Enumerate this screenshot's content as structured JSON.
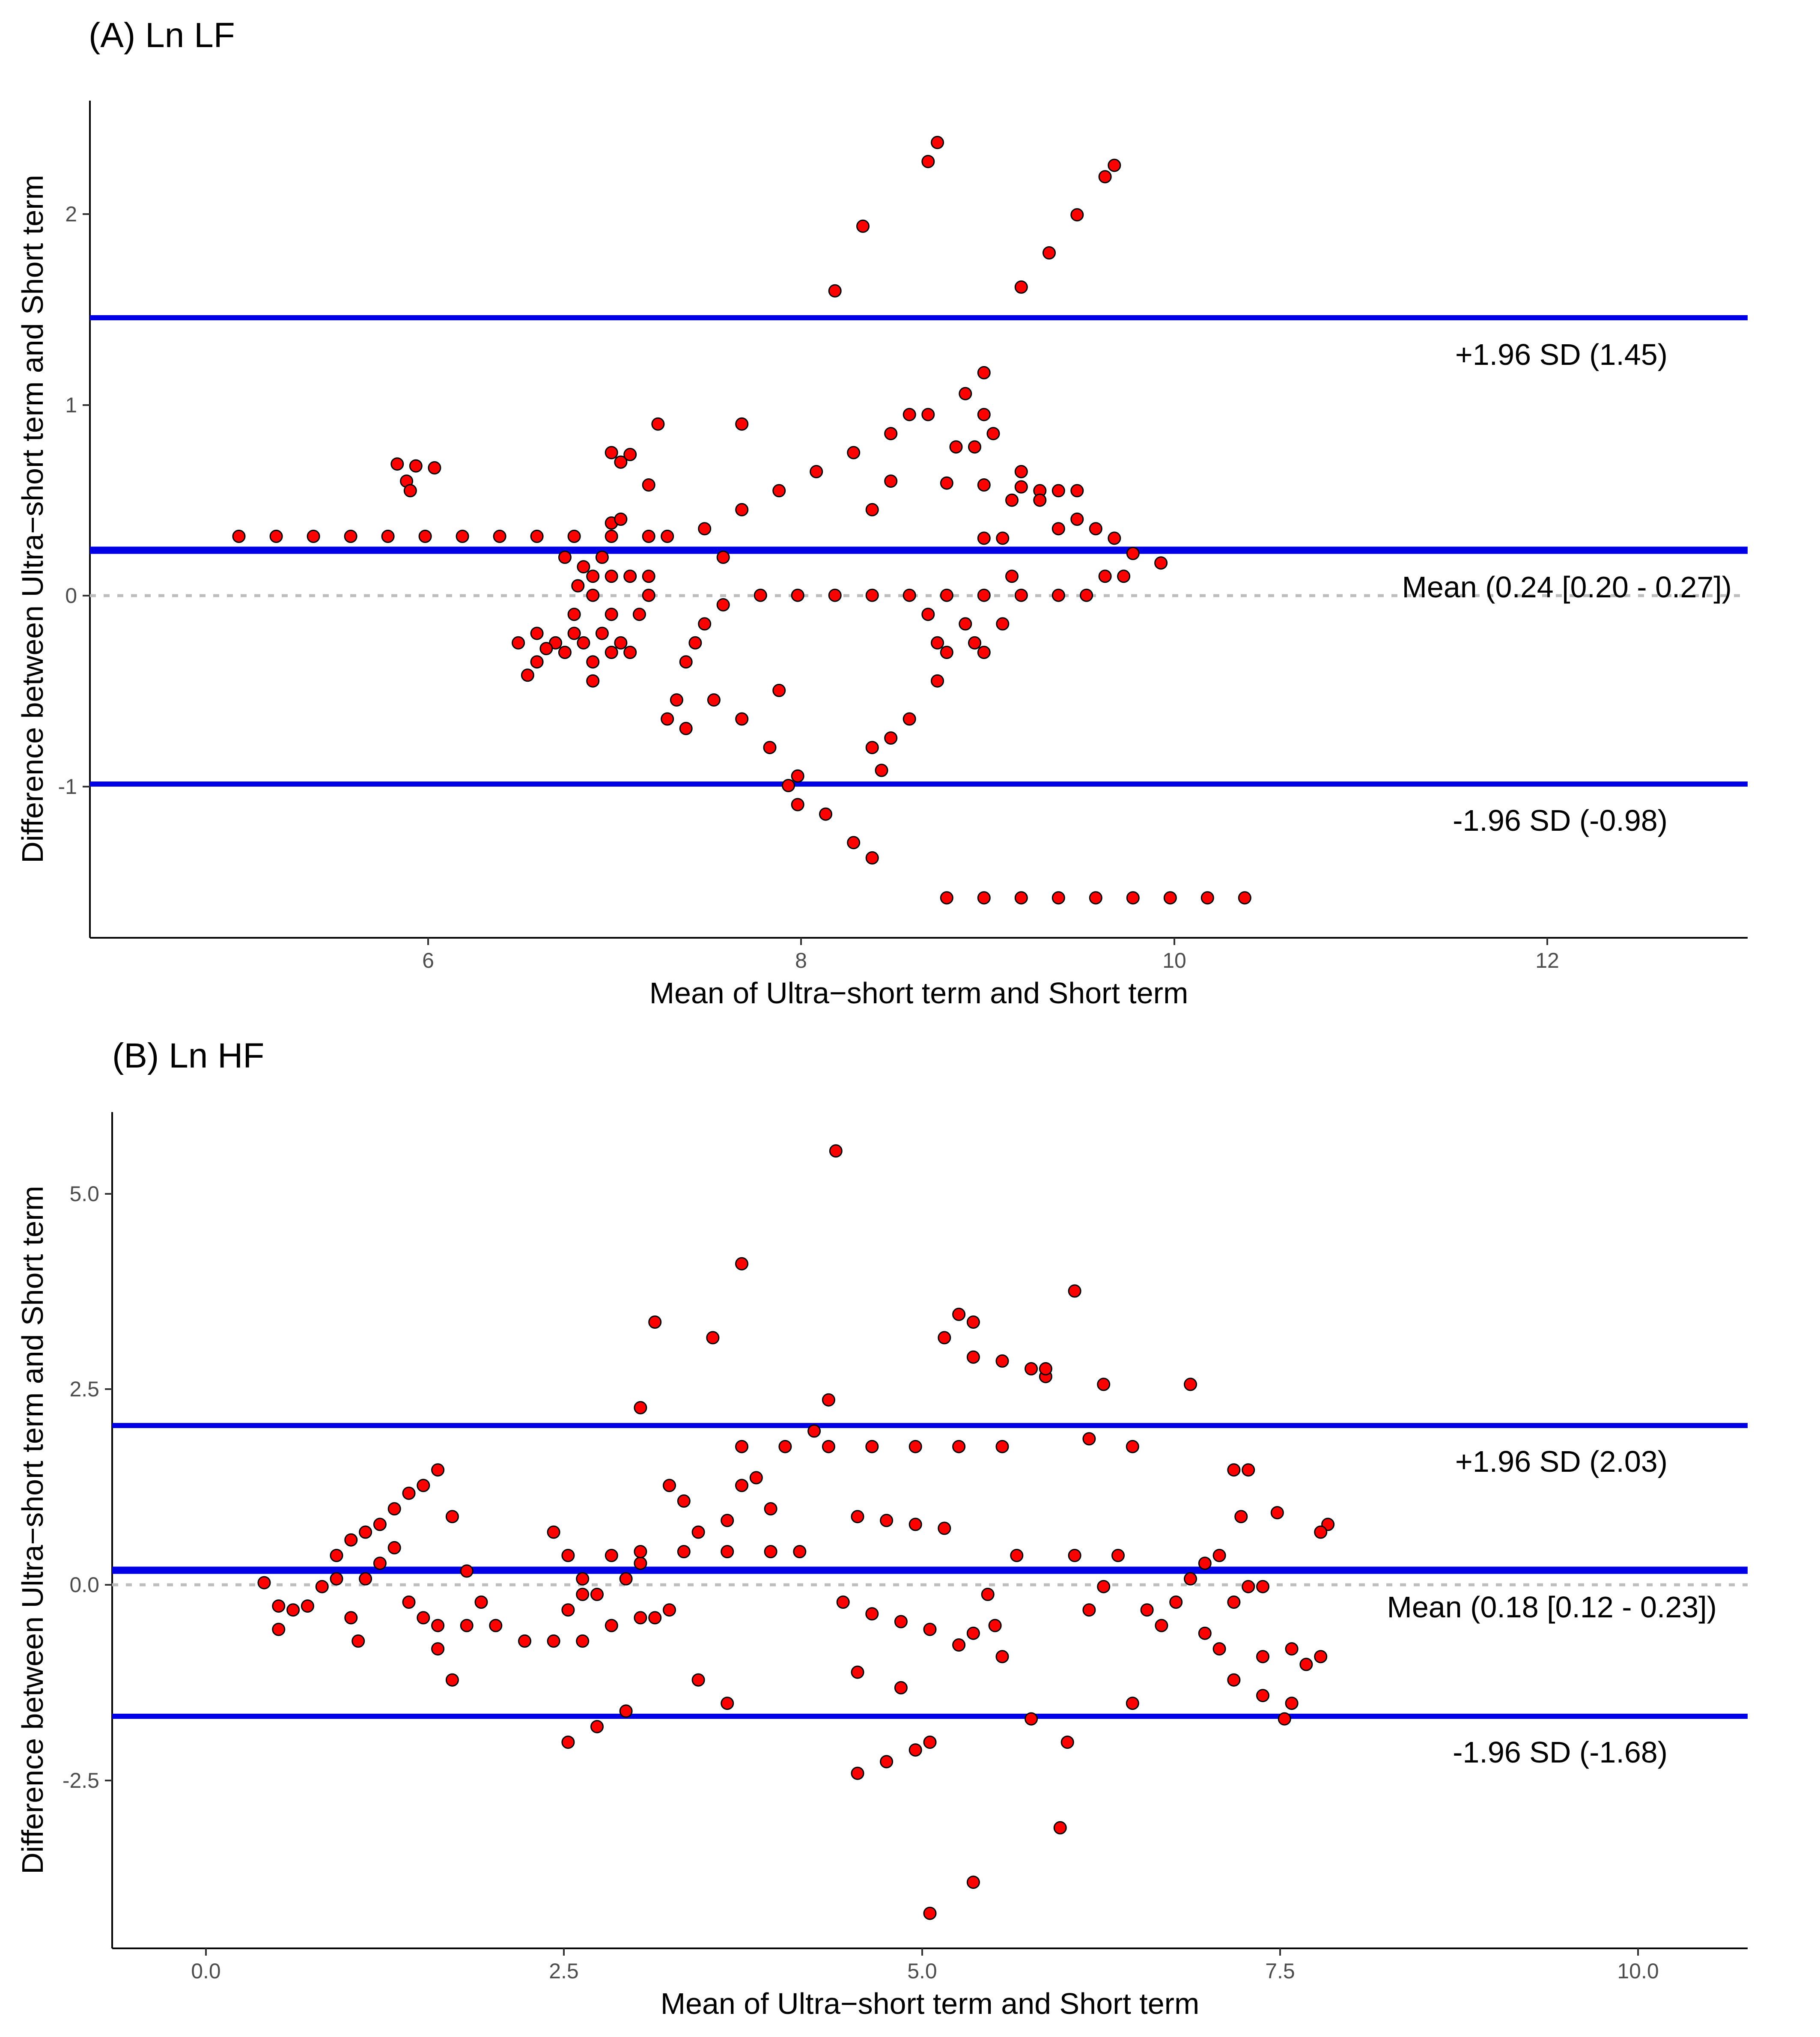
{
  "chart_data": [
    {
      "type": "scatter",
      "title": "(A) Ln LF",
      "xlabel": "Mean of Ultra−short term and Short term",
      "ylabel": "Difference between Ultra−short term and Short term",
      "xlim": [
        4.3,
        13.2
      ],
      "ylim": [
        -1.8,
        2.6
      ],
      "xticks": [
        6,
        8,
        10,
        12
      ],
      "xtick_labels": [
        "6",
        "8",
        "10",
        "12"
      ],
      "yticks": [
        -1,
        0,
        1,
        2
      ],
      "ytick_labels": [
        "-1",
        "0",
        "1",
        "2"
      ],
      "reference_lines": [
        {
          "name": "upper-loa",
          "value": 1.45,
          "label": "+1.96 SD (1.45)"
        },
        {
          "name": "mean",
          "value": 0.24,
          "label": "Mean (0.24 [0.20 - 0.27])"
        },
        {
          "name": "lower-loa",
          "value": -0.98,
          "label": "-1.96 SD (-0.98)"
        }
      ],
      "zero_line": 0,
      "points": [
        [
          5.1,
          0.31
        ],
        [
          5.3,
          0.31
        ],
        [
          5.5,
          0.31
        ],
        [
          5.7,
          0.31
        ],
        [
          5.9,
          0.31
        ],
        [
          6.1,
          0.31
        ],
        [
          6.3,
          0.31
        ],
        [
          6.5,
          0.31
        ],
        [
          6.7,
          0.31
        ],
        [
          6.9,
          0.31
        ],
        [
          7.1,
          0.31
        ],
        [
          7.3,
          0.31
        ],
        [
          7.4,
          0.31
        ],
        [
          5.95,
          0.69
        ],
        [
          6.05,
          0.68
        ],
        [
          6.15,
          0.67
        ],
        [
          6.0,
          0.6
        ],
        [
          6.02,
          0.55
        ],
        [
          7.3,
          0.58
        ],
        [
          7.35,
          0.9
        ],
        [
          7.2,
          0.74
        ],
        [
          7.1,
          0.75
        ],
        [
          7.15,
          0.7
        ],
        [
          6.9,
          -0.1
        ],
        [
          6.9,
          -0.2
        ],
        [
          6.92,
          0.05
        ],
        [
          6.95,
          0.15
        ],
        [
          6.85,
          -0.3
        ],
        [
          6.8,
          -0.25
        ],
        [
          6.7,
          -0.35
        ],
        [
          6.75,
          -0.28
        ],
        [
          6.65,
          -0.42
        ],
        [
          6.6,
          -0.25
        ],
        [
          6.7,
          -0.2
        ],
        [
          6.95,
          -0.25
        ],
        [
          7.0,
          -0.35
        ],
        [
          7.05,
          -0.2
        ],
        [
          7.1,
          -0.3
        ],
        [
          7.15,
          -0.25
        ],
        [
          7.2,
          -0.3
        ],
        [
          7.0,
          -0.45
        ],
        [
          7.1,
          -0.1
        ],
        [
          7.0,
          0.0
        ],
        [
          7.0,
          0.1
        ],
        [
          7.05,
          0.2
        ],
        [
          7.1,
          0.38
        ],
        [
          7.15,
          0.4
        ],
        [
          6.85,
          0.2
        ],
        [
          7.1,
          0.1
        ],
        [
          7.2,
          0.1
        ],
        [
          7.3,
          0.1
        ],
        [
          7.3,
          0.0
        ],
        [
          7.25,
          -0.1
        ],
        [
          7.6,
          0.35
        ],
        [
          7.8,
          0.45
        ],
        [
          8.0,
          0.55
        ],
        [
          8.2,
          0.65
        ],
        [
          8.4,
          0.75
        ],
        [
          8.6,
          0.85
        ],
        [
          8.8,
          0.95
        ],
        [
          9.0,
          1.06
        ],
        [
          9.1,
          1.17
        ],
        [
          8.05,
          -1.0
        ],
        [
          8.1,
          -1.1
        ],
        [
          8.3,
          1.6
        ],
        [
          8.45,
          1.94
        ],
        [
          8.8,
          2.28
        ],
        [
          8.85,
          2.38
        ],
        [
          9.3,
          1.62
        ],
        [
          9.45,
          1.8
        ],
        [
          9.6,
          2.0
        ],
        [
          9.75,
          2.2
        ],
        [
          9.8,
          2.26
        ],
        [
          7.7,
          0.2
        ],
        [
          7.8,
          0.9
        ],
        [
          8.0,
          -0.5
        ],
        [
          7.9,
          0.0
        ],
        [
          8.1,
          0.0
        ],
        [
          8.3,
          0.0
        ],
        [
          8.5,
          0.0
        ],
        [
          8.7,
          0.0
        ],
        [
          8.9,
          0.0
        ],
        [
          9.1,
          0.0
        ],
        [
          9.3,
          0.0
        ],
        [
          9.5,
          0.0
        ],
        [
          9.65,
          0.0
        ],
        [
          8.9,
          0.59
        ],
        [
          9.1,
          0.58
        ],
        [
          9.3,
          0.57
        ],
        [
          9.4,
          0.55
        ],
        [
          9.5,
          0.55
        ],
        [
          9.6,
          0.55
        ],
        [
          9.6,
          0.4
        ],
        [
          9.7,
          0.35
        ],
        [
          9.8,
          0.3
        ],
        [
          9.9,
          0.22
        ],
        [
          10.05,
          0.17
        ],
        [
          9.75,
          0.1
        ],
        [
          9.85,
          0.1
        ],
        [
          8.8,
          -0.1
        ],
        [
          8.85,
          -0.25
        ],
        [
          8.9,
          -0.3
        ],
        [
          9.0,
          -0.15
        ],
        [
          9.05,
          -0.25
        ],
        [
          9.1,
          -0.3
        ],
        [
          9.2,
          -0.15
        ],
        [
          9.25,
          0.1
        ],
        [
          9.1,
          0.3
        ],
        [
          9.2,
          0.3
        ],
        [
          9.25,
          0.5
        ],
        [
          9.4,
          0.5
        ],
        [
          9.5,
          0.35
        ],
        [
          9.3,
          0.65
        ],
        [
          9.05,
          0.78
        ],
        [
          9.1,
          0.95
        ],
        [
          9.15,
          0.85
        ],
        [
          8.95,
          0.78
        ],
        [
          8.7,
          0.95
        ],
        [
          8.5,
          0.45
        ],
        [
          8.6,
          0.6
        ],
        [
          7.4,
          -0.65
        ],
        [
          7.45,
          -0.55
        ],
        [
          7.5,
          -0.7
        ],
        [
          7.5,
          -0.35
        ],
        [
          7.55,
          -0.25
        ],
        [
          7.6,
          -0.15
        ],
        [
          7.7,
          -0.05
        ],
        [
          7.65,
          -0.55
        ],
        [
          7.8,
          -0.65
        ],
        [
          7.95,
          -0.8
        ],
        [
          8.1,
          -0.95
        ],
        [
          8.25,
          -1.15
        ],
        [
          8.4,
          -1.3
        ],
        [
          8.5,
          -1.38
        ],
        [
          8.85,
          -0.45
        ],
        [
          8.7,
          -0.65
        ],
        [
          8.6,
          -0.75
        ],
        [
          8.5,
          -0.8
        ],
        [
          8.55,
          -0.92
        ],
        [
          8.9,
          -1.59
        ],
        [
          9.1,
          -1.59
        ],
        [
          9.3,
          -1.59
        ],
        [
          9.5,
          -1.59
        ],
        [
          9.7,
          -1.59
        ],
        [
          9.9,
          -1.59
        ],
        [
          10.1,
          -1.59
        ],
        [
          10.3,
          -1.59
        ],
        [
          10.5,
          -1.59
        ]
      ]
    },
    {
      "type": "scatter",
      "title": "(B) Ln HF",
      "xlabel": "Mean of Ultra−short term and Short term",
      "ylabel": "Difference between Ultra−short term and Short term",
      "xlim": [
        -0.65,
        10.65
      ],
      "ylim": [
        -4.75,
        6.0
      ],
      "xticks": [
        0.0,
        2.5,
        5.0,
        7.5,
        10.0
      ],
      "xtick_labels": [
        "0.0",
        "2.5",
        "5.0",
        "7.5",
        "10.0"
      ],
      "yticks": [
        -2.5,
        0.0,
        2.5,
        5.0
      ],
      "ytick_labels": [
        "-2.5",
        "0.0",
        "2.5",
        "5.0"
      ],
      "reference_lines": [
        {
          "name": "upper-loa",
          "value": 2.03,
          "label": "+1.96 SD (2.03)"
        },
        {
          "name": "mean",
          "value": 0.18,
          "label": "Mean (0.18 [0.12 - 0.23])"
        },
        {
          "name": "lower-loa",
          "value": -1.68,
          "label": "-1.96 SD (-1.68)"
        }
      ],
      "zero_line": 0,
      "points": [
        [
          0.4,
          -0.05
        ],
        [
          0.5,
          -0.35
        ],
        [
          0.5,
          -0.65
        ],
        [
          0.6,
          -0.4
        ],
        [
          0.7,
          -0.35
        ],
        [
          0.8,
          -0.1
        ],
        [
          0.9,
          0.3
        ],
        [
          1.0,
          0.5
        ],
        [
          1.1,
          0.6
        ],
        [
          1.2,
          0.7
        ],
        [
          1.3,
          0.9
        ],
        [
          1.4,
          1.1
        ],
        [
          1.5,
          1.2
        ],
        [
          1.6,
          1.4
        ],
        [
          0.9,
          0.0
        ],
        [
          1.0,
          -0.5
        ],
        [
          1.05,
          -0.8
        ],
        [
          1.1,
          0.0
        ],
        [
          1.2,
          0.2
        ],
        [
          1.3,
          0.4
        ],
        [
          1.4,
          -0.3
        ],
        [
          1.5,
          -0.5
        ],
        [
          1.6,
          -0.6
        ],
        [
          1.8,
          -0.6
        ],
        [
          2.0,
          -0.6
        ],
        [
          1.7,
          -1.3
        ],
        [
          1.6,
          -0.9
        ],
        [
          1.7,
          0.8
        ],
        [
          1.8,
          0.1
        ],
        [
          1.9,
          -0.3
        ],
        [
          2.2,
          -0.8
        ],
        [
          2.4,
          -0.8
        ],
        [
          2.6,
          -0.8
        ],
        [
          2.4,
          0.6
        ],
        [
          2.5,
          0.3
        ],
        [
          2.6,
          0.0
        ],
        [
          2.6,
          -0.2
        ],
        [
          2.8,
          0.3
        ],
        [
          2.8,
          -0.6
        ],
        [
          2.5,
          -2.1
        ],
        [
          2.7,
          -1.9
        ],
        [
          2.9,
          -1.7
        ],
        [
          2.5,
          -0.4
        ],
        [
          2.7,
          -0.2
        ],
        [
          2.9,
          0.0
        ],
        [
          3.0,
          0.2
        ],
        [
          3.0,
          2.2
        ],
        [
          3.1,
          3.3
        ],
        [
          3.2,
          1.2
        ],
        [
          3.3,
          1.0
        ],
        [
          3.0,
          -0.5
        ],
        [
          3.1,
          -0.5
        ],
        [
          3.2,
          -0.4
        ],
        [
          3.4,
          -1.3
        ],
        [
          3.0,
          0.35
        ],
        [
          3.3,
          0.35
        ],
        [
          3.6,
          0.35
        ],
        [
          3.9,
          0.35
        ],
        [
          4.1,
          0.35
        ],
        [
          3.4,
          0.6
        ],
        [
          3.6,
          0.75
        ],
        [
          3.7,
          1.2
        ],
        [
          3.8,
          1.3
        ],
        [
          3.9,
          0.9
        ],
        [
          3.5,
          3.1
        ],
        [
          3.7,
          4.05
        ],
        [
          3.6,
          -1.6
        ],
        [
          3.7,
          1.7
        ],
        [
          4.0,
          1.7
        ],
        [
          4.3,
          1.7
        ],
        [
          4.6,
          1.7
        ],
        [
          4.9,
          1.7
        ],
        [
          5.2,
          1.7
        ],
        [
          5.5,
          1.7
        ],
        [
          4.2,
          1.9
        ],
        [
          4.3,
          2.3
        ],
        [
          4.35,
          5.5
        ],
        [
          4.5,
          0.8
        ],
        [
          4.7,
          0.75
        ],
        [
          4.9,
          0.7
        ],
        [
          5.1,
          0.65
        ],
        [
          4.4,
          -0.3
        ],
        [
          4.6,
          -0.45
        ],
        [
          4.8,
          -0.55
        ],
        [
          5.0,
          -0.65
        ],
        [
          4.5,
          -2.5
        ],
        [
          4.7,
          -2.35
        ],
        [
          4.9,
          -2.2
        ],
        [
          5.0,
          -2.1
        ],
        [
          5.0,
          -4.3
        ],
        [
          5.3,
          -3.9
        ],
        [
          5.2,
          -0.85
        ],
        [
          5.3,
          -0.7
        ],
        [
          4.5,
          -1.2
        ],
        [
          4.8,
          -1.4
        ],
        [
          5.1,
          3.1
        ],
        [
          5.2,
          3.4
        ],
        [
          5.3,
          3.3
        ],
        [
          5.3,
          2.85
        ],
        [
          5.5,
          2.8
        ],
        [
          5.7,
          2.7
        ],
        [
          5.8,
          2.6
        ],
        [
          5.4,
          -0.2
        ],
        [
          5.45,
          -0.6
        ],
        [
          5.5,
          -1.0
        ],
        [
          5.6,
          0.3
        ],
        [
          5.7,
          -1.8
        ],
        [
          5.8,
          2.7
        ],
        [
          5.9,
          -3.2
        ],
        [
          6.0,
          3.7
        ],
        [
          5.95,
          -2.1
        ],
        [
          6.1,
          1.8
        ],
        [
          6.2,
          2.5
        ],
        [
          6.0,
          0.3
        ],
        [
          6.1,
          -0.4
        ],
        [
          6.2,
          -0.1
        ],
        [
          6.3,
          0.3
        ],
        [
          6.4,
          1.7
        ],
        [
          6.4,
          -1.6
        ],
        [
          6.5,
          -0.4
        ],
        [
          6.6,
          -0.6
        ],
        [
          6.7,
          -0.3
        ],
        [
          6.8,
          0.0
        ],
        [
          6.9,
          0.2
        ],
        [
          6.8,
          2.5
        ],
        [
          6.9,
          -0.7
        ],
        [
          7.0,
          -0.9
        ],
        [
          7.1,
          -1.3
        ],
        [
          7.0,
          0.3
        ],
        [
          7.1,
          -0.3
        ],
        [
          7.2,
          -0.1
        ],
        [
          7.3,
          -0.1
        ],
        [
          7.1,
          1.4
        ],
        [
          7.15,
          0.8
        ],
        [
          7.2,
          1.4
        ],
        [
          7.3,
          -1.5
        ],
        [
          7.4,
          0.85
        ],
        [
          7.5,
          -0.9
        ],
        [
          7.5,
          -1.6
        ],
        [
          7.45,
          -1.8
        ],
        [
          7.6,
          -1.1
        ],
        [
          7.7,
          -1.0
        ],
        [
          7.75,
          0.7
        ],
        [
          7.7,
          0.6
        ],
        [
          7.3,
          -1.0
        ]
      ]
    }
  ]
}
